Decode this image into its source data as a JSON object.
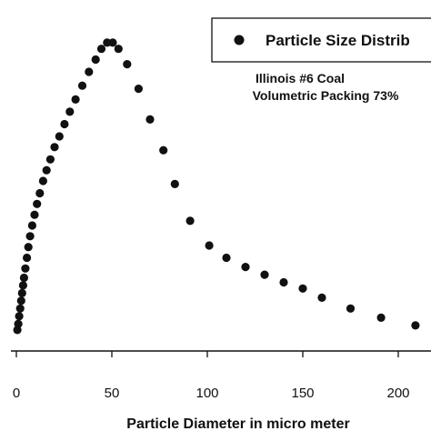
{
  "chart_data": {
    "type": "scatter",
    "title": "",
    "xlabel": "Particle Diameter in micro meter",
    "ylabel": "",
    "xlim": [
      -3,
      214
    ],
    "ylim": [
      0,
      100
    ],
    "xticks": [
      0,
      50,
      100,
      150,
      200
    ],
    "xtick_labels": [
      "0",
      "50",
      "100",
      "150",
      "200"
    ],
    "grid": false,
    "legend": {
      "position": "top-right",
      "label": "Particle Size Distrib"
    },
    "annotations": [
      "Illinois #6 Coal",
      "Volumetric Packing 73%"
    ],
    "marker_color": "#111111",
    "series": [
      {
        "name": "Particle Size Distrib",
        "points": [
          [
            0.5,
            1.5
          ],
          [
            1.0,
            3.5
          ],
          [
            1.5,
            6.0
          ],
          [
            2.0,
            8.5
          ],
          [
            2.5,
            11.0
          ],
          [
            3.0,
            13.5
          ],
          [
            3.5,
            16.0
          ],
          [
            4.0,
            18.5
          ],
          [
            4.7,
            21.5
          ],
          [
            5.5,
            25.0
          ],
          [
            6.3,
            28.5
          ],
          [
            7.2,
            32.0
          ],
          [
            8.3,
            35.5
          ],
          [
            9.5,
            39.0
          ],
          [
            10.8,
            42.5
          ],
          [
            12.3,
            46.0
          ],
          [
            14.0,
            50.0
          ],
          [
            15.8,
            53.5
          ],
          [
            17.8,
            57.0
          ],
          [
            20.0,
            61.0
          ],
          [
            22.5,
            64.5
          ],
          [
            25.2,
            68.5
          ],
          [
            28.0,
            72.5
          ],
          [
            31.0,
            76.5
          ],
          [
            34.5,
            81.0
          ],
          [
            38.0,
            85.5
          ],
          [
            41.5,
            89.5
          ],
          [
            44.5,
            93.0
          ],
          [
            47.5,
            95.0
          ],
          [
            50.5,
            95.0
          ],
          [
            53.5,
            93.0
          ],
          [
            58.0,
            88.0
          ],
          [
            64.0,
            80.0
          ],
          [
            70.0,
            70.0
          ],
          [
            77.0,
            60.0
          ],
          [
            83.0,
            49.0
          ],
          [
            91.0,
            37.0
          ],
          [
            101.0,
            29.0
          ],
          [
            110.0,
            25.0
          ],
          [
            120.0,
            22.0
          ],
          [
            130.0,
            19.5
          ],
          [
            140.0,
            17.0
          ],
          [
            150.0,
            15.0
          ],
          [
            160.0,
            12.0
          ],
          [
            175.0,
            8.5
          ],
          [
            191.0,
            5.5
          ],
          [
            209.0,
            3.0
          ]
        ]
      }
    ]
  }
}
